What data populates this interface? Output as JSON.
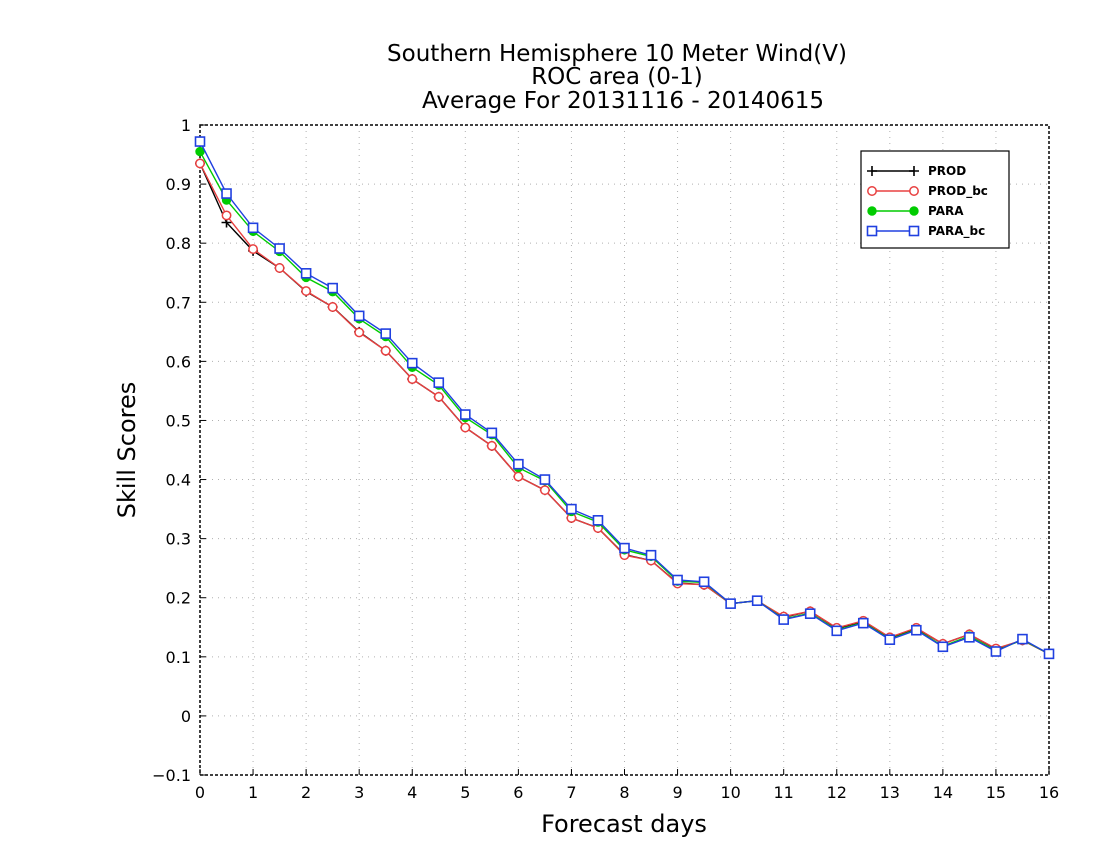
{
  "chart_data": {
    "type": "line",
    "title_lines": [
      "Southern Hemisphere 10 Meter Wind(V)",
      "ROC area (0-1)",
      "Average For 20131116 - 20140615"
    ],
    "xlabel": "Forecast days",
    "ylabel": "Skill Scores",
    "xlim": [
      0,
      16
    ],
    "ylim": [
      -0.1,
      1
    ],
    "x_ticks": [
      0,
      1,
      2,
      3,
      4,
      5,
      6,
      7,
      8,
      9,
      10,
      11,
      12,
      13,
      14,
      15,
      16
    ],
    "y_ticks": [
      -0.1,
      0,
      0.1,
      0.2,
      0.3,
      0.4,
      0.5,
      0.6,
      0.7,
      0.8,
      0.9,
      1
    ],
    "y_tick_labels": [
      "−0.1",
      "0",
      "0.1",
      "0.2",
      "0.3",
      "0.4",
      "0.5",
      "0.6",
      "0.7",
      "0.8",
      "0.9",
      "1"
    ],
    "grid": true,
    "legend_position": "top-right",
    "x": [
      0,
      0.5,
      1,
      1.5,
      2,
      2.5,
      3,
      3.5,
      4,
      4.5,
      5,
      5.5,
      6,
      6.5,
      7,
      7.5,
      8,
      8.5,
      9,
      9.5,
      10,
      10.5,
      11,
      11.5,
      12,
      12.5,
      13,
      13.5,
      14,
      14.5,
      15,
      15.5,
      16
    ],
    "series": [
      {
        "name": "PROD",
        "color": "#000000",
        "marker": "plus",
        "values": [
          0.935,
          0.835,
          0.787,
          0.758,
          0.718,
          0.692,
          0.65,
          0.618,
          0.57,
          0.54,
          0.488,
          0.457,
          0.405,
          0.382,
          0.335,
          0.318,
          0.273,
          0.263,
          0.225,
          0.222,
          0.19,
          0.195,
          0.167,
          0.177,
          0.148,
          0.16,
          0.132,
          0.148,
          0.122,
          0.138,
          0.113,
          0.128,
          0.105
        ]
      },
      {
        "name": "PROD_bc",
        "color": "#e84040",
        "marker": "circle",
        "values": [
          0.935,
          0.847,
          0.79,
          0.758,
          0.719,
          0.692,
          0.649,
          0.618,
          0.57,
          0.54,
          0.488,
          0.457,
          0.405,
          0.382,
          0.335,
          0.318,
          0.272,
          0.263,
          0.224,
          0.222,
          0.19,
          0.195,
          0.168,
          0.177,
          0.149,
          0.161,
          0.133,
          0.149,
          0.122,
          0.138,
          0.114,
          0.128,
          0.105
        ]
      },
      {
        "name": "PARA",
        "color": "#00cc00",
        "marker": "filled-circle",
        "values": [
          0.955,
          0.873,
          0.82,
          0.786,
          0.742,
          0.718,
          0.672,
          0.642,
          0.59,
          0.56,
          0.505,
          0.476,
          0.42,
          0.398,
          0.346,
          0.328,
          0.281,
          0.27,
          0.228,
          0.226,
          0.19,
          0.195,
          0.164,
          0.174,
          0.145,
          0.158,
          0.13,
          0.146,
          0.118,
          0.135,
          0.11,
          0.129,
          0.105
        ]
      },
      {
        "name": "PARA_bc",
        "color": "#2040e0",
        "marker": "square",
        "values": [
          0.972,
          0.884,
          0.826,
          0.791,
          0.749,
          0.724,
          0.677,
          0.647,
          0.597,
          0.564,
          0.51,
          0.479,
          0.426,
          0.4,
          0.35,
          0.331,
          0.284,
          0.272,
          0.23,
          0.227,
          0.19,
          0.195,
          0.163,
          0.173,
          0.144,
          0.157,
          0.129,
          0.145,
          0.117,
          0.133,
          0.109,
          0.13,
          0.105
        ]
      }
    ]
  }
}
